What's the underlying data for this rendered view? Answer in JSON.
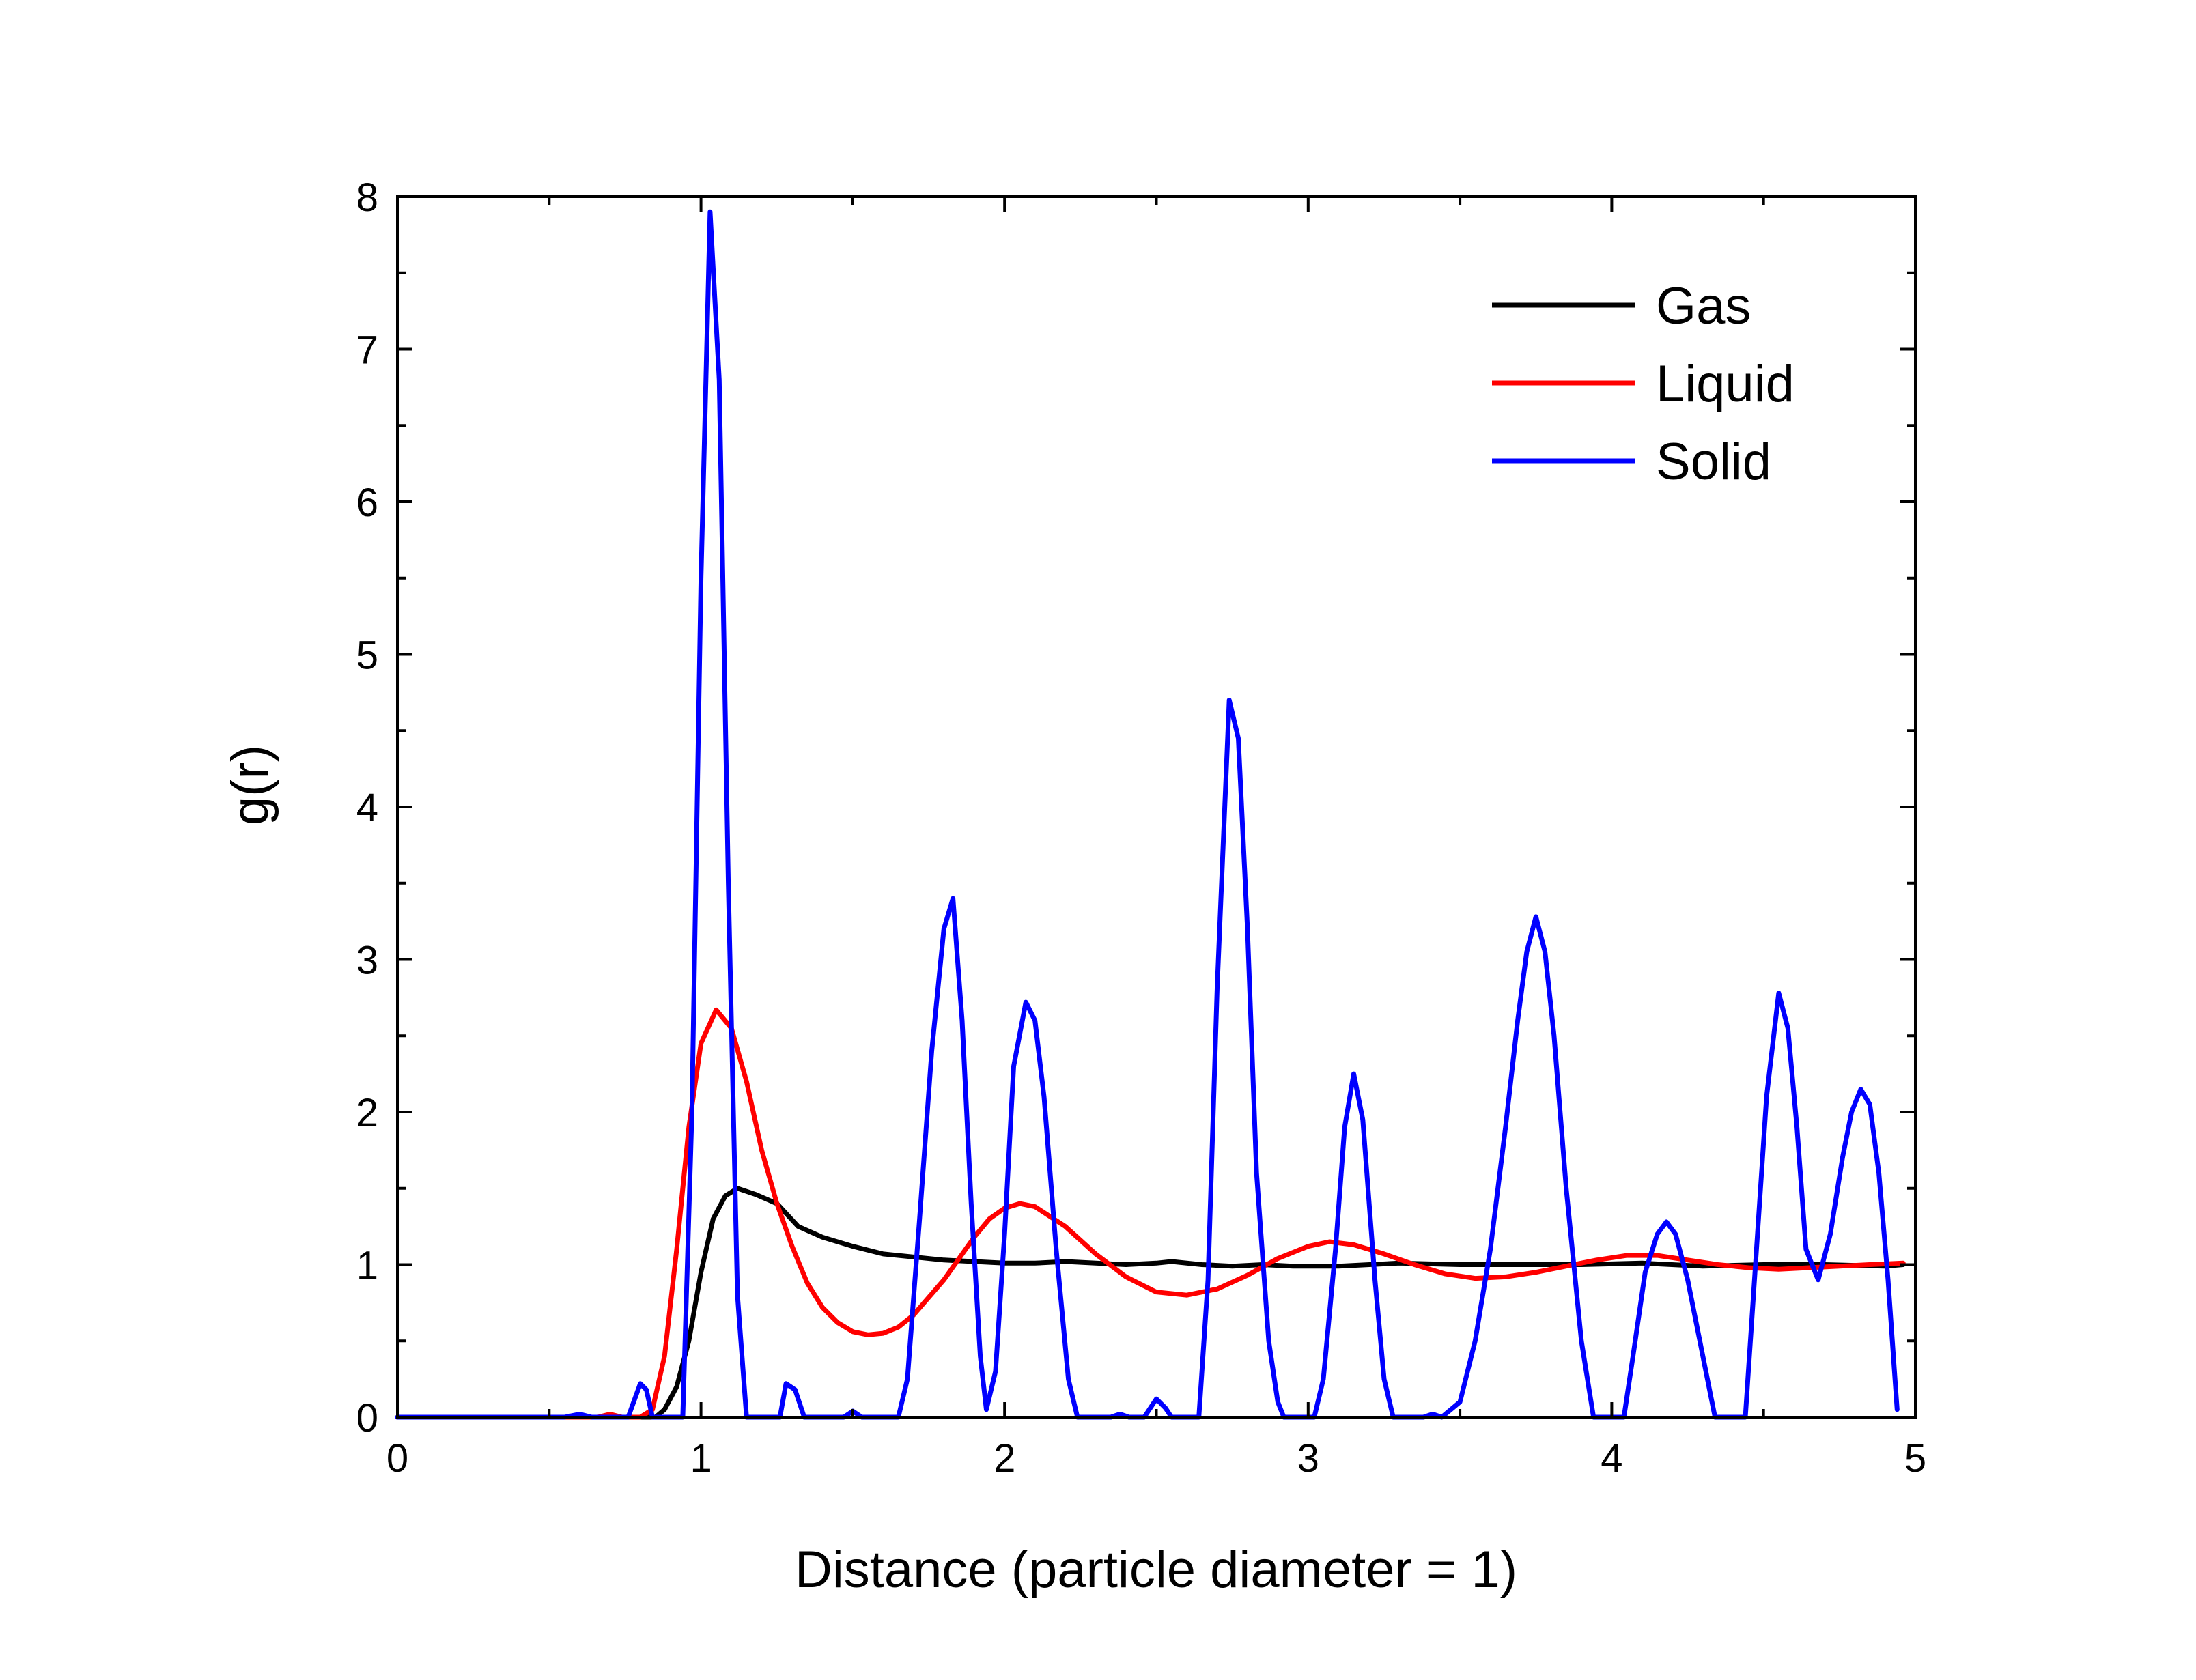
{
  "chart_data": {
    "type": "line",
    "xlabel": "Distance (particle diameter = 1)",
    "ylabel": "g(r)",
    "xlim": [
      0,
      5
    ],
    "ylim": [
      0,
      8
    ],
    "xticks": [
      "0",
      "1",
      "2",
      "3",
      "4",
      "5"
    ],
    "yticks": [
      "0",
      "1",
      "2",
      "3",
      "4",
      "5",
      "6",
      "7",
      "8"
    ],
    "grid": false,
    "legend": "top-right",
    "series": [
      {
        "name": "Gas",
        "color": "#000000",
        "points": [
          [
            0.0,
            0.0
          ],
          [
            0.8,
            0.0
          ],
          [
            0.85,
            0.0
          ],
          [
            0.88,
            0.05
          ],
          [
            0.92,
            0.2
          ],
          [
            0.96,
            0.5
          ],
          [
            1.0,
            0.95
          ],
          [
            1.04,
            1.3
          ],
          [
            1.08,
            1.45
          ],
          [
            1.12,
            1.5
          ],
          [
            1.18,
            1.46
          ],
          [
            1.25,
            1.4
          ],
          [
            1.32,
            1.25
          ],
          [
            1.4,
            1.18
          ],
          [
            1.5,
            1.12
          ],
          [
            1.6,
            1.07
          ],
          [
            1.7,
            1.05
          ],
          [
            1.8,
            1.03
          ],
          [
            1.9,
            1.02
          ],
          [
            2.0,
            1.01
          ],
          [
            2.1,
            1.01
          ],
          [
            2.2,
            1.02
          ],
          [
            2.3,
            1.01
          ],
          [
            2.4,
            1.0
          ],
          [
            2.5,
            1.01
          ],
          [
            2.55,
            1.02
          ],
          [
            2.65,
            1.0
          ],
          [
            2.75,
            0.99
          ],
          [
            2.85,
            1.0
          ],
          [
            2.95,
            0.99
          ],
          [
            3.1,
            0.99
          ],
          [
            3.3,
            1.01
          ],
          [
            3.5,
            1.0
          ],
          [
            3.7,
            1.0
          ],
          [
            3.9,
            1.0
          ],
          [
            4.1,
            1.01
          ],
          [
            4.3,
            0.99
          ],
          [
            4.5,
            1.0
          ],
          [
            4.7,
            1.0
          ],
          [
            4.9,
            0.99
          ],
          [
            4.96,
            1.0
          ]
        ]
      },
      {
        "name": "Liquid",
        "color": "#ff0000",
        "points": [
          [
            0.0,
            0.0
          ],
          [
            0.66,
            0.0
          ],
          [
            0.7,
            0.02
          ],
          [
            0.74,
            0.0
          ],
          [
            0.8,
            0.0
          ],
          [
            0.84,
            0.05
          ],
          [
            0.88,
            0.4
          ],
          [
            0.92,
            1.1
          ],
          [
            0.96,
            1.9
          ],
          [
            1.0,
            2.45
          ],
          [
            1.05,
            2.67
          ],
          [
            1.1,
            2.55
          ],
          [
            1.15,
            2.2
          ],
          [
            1.2,
            1.75
          ],
          [
            1.25,
            1.4
          ],
          [
            1.3,
            1.12
          ],
          [
            1.35,
            0.88
          ],
          [
            1.4,
            0.72
          ],
          [
            1.45,
            0.62
          ],
          [
            1.5,
            0.56
          ],
          [
            1.55,
            0.54
          ],
          [
            1.6,
            0.55
          ],
          [
            1.65,
            0.59
          ],
          [
            1.7,
            0.67
          ],
          [
            1.8,
            0.9
          ],
          [
            1.9,
            1.18
          ],
          [
            1.95,
            1.3
          ],
          [
            2.0,
            1.37
          ],
          [
            2.05,
            1.4
          ],
          [
            2.1,
            1.38
          ],
          [
            2.2,
            1.25
          ],
          [
            2.3,
            1.07
          ],
          [
            2.4,
            0.92
          ],
          [
            2.5,
            0.82
          ],
          [
            2.6,
            0.8
          ],
          [
            2.7,
            0.84
          ],
          [
            2.8,
            0.93
          ],
          [
            2.9,
            1.04
          ],
          [
            3.0,
            1.12
          ],
          [
            3.07,
            1.15
          ],
          [
            3.15,
            1.13
          ],
          [
            3.25,
            1.07
          ],
          [
            3.35,
            1.0
          ],
          [
            3.45,
            0.94
          ],
          [
            3.55,
            0.91
          ],
          [
            3.65,
            0.92
          ],
          [
            3.75,
            0.95
          ],
          [
            3.85,
            0.99
          ],
          [
            3.95,
            1.03
          ],
          [
            4.05,
            1.06
          ],
          [
            4.15,
            1.06
          ],
          [
            4.25,
            1.03
          ],
          [
            4.35,
            1.0
          ],
          [
            4.45,
            0.98
          ],
          [
            4.55,
            0.97
          ],
          [
            4.65,
            0.98
          ],
          [
            4.75,
            0.99
          ],
          [
            4.85,
            1.0
          ],
          [
            4.96,
            1.01
          ]
        ]
      },
      {
        "name": "Solid",
        "color": "#0000ff",
        "points": [
          [
            0.0,
            0.0
          ],
          [
            0.55,
            0.0
          ],
          [
            0.6,
            0.02
          ],
          [
            0.64,
            0.0
          ],
          [
            0.76,
            0.0
          ],
          [
            0.8,
            0.22
          ],
          [
            0.82,
            0.18
          ],
          [
            0.84,
            0.0
          ],
          [
            0.94,
            0.0
          ],
          [
            0.97,
            2.0
          ],
          [
            1.0,
            5.5
          ],
          [
            1.03,
            7.9
          ],
          [
            1.06,
            6.8
          ],
          [
            1.09,
            3.5
          ],
          [
            1.12,
            0.8
          ],
          [
            1.15,
            0.0
          ],
          [
            1.26,
            0.0
          ],
          [
            1.28,
            0.22
          ],
          [
            1.31,
            0.18
          ],
          [
            1.34,
            0.0
          ],
          [
            1.47,
            0.0
          ],
          [
            1.5,
            0.04
          ],
          [
            1.53,
            0.0
          ],
          [
            1.65,
            0.0
          ],
          [
            1.68,
            0.25
          ],
          [
            1.72,
            1.3
          ],
          [
            1.76,
            2.4
          ],
          [
            1.8,
            3.2
          ],
          [
            1.83,
            3.4
          ],
          [
            1.86,
            2.6
          ],
          [
            1.89,
            1.4
          ],
          [
            1.92,
            0.4
          ],
          [
            1.94,
            0.05
          ],
          [
            1.97,
            0.3
          ],
          [
            2.0,
            1.2
          ],
          [
            2.03,
            2.3
          ],
          [
            2.07,
            2.72
          ],
          [
            2.1,
            2.6
          ],
          [
            2.13,
            2.1
          ],
          [
            2.17,
            1.1
          ],
          [
            2.21,
            0.25
          ],
          [
            2.24,
            0.0
          ],
          [
            2.35,
            0.0
          ],
          [
            2.38,
            0.02
          ],
          [
            2.41,
            0.0
          ],
          [
            2.46,
            0.0
          ],
          [
            2.5,
            0.12
          ],
          [
            2.53,
            0.06
          ],
          [
            2.55,
            0.0
          ],
          [
            2.64,
            0.0
          ],
          [
            2.67,
            0.9
          ],
          [
            2.7,
            2.8
          ],
          [
            2.74,
            4.7
          ],
          [
            2.77,
            4.45
          ],
          [
            2.8,
            3.2
          ],
          [
            2.83,
            1.6
          ],
          [
            2.87,
            0.5
          ],
          [
            2.9,
            0.1
          ],
          [
            2.92,
            0.0
          ],
          [
            3.02,
            0.0
          ],
          [
            3.05,
            0.25
          ],
          [
            3.09,
            1.1
          ],
          [
            3.12,
            1.9
          ],
          [
            3.15,
            2.25
          ],
          [
            3.18,
            1.95
          ],
          [
            3.22,
            0.9
          ],
          [
            3.25,
            0.25
          ],
          [
            3.28,
            0.0
          ],
          [
            3.38,
            0.0
          ],
          [
            3.41,
            0.02
          ],
          [
            3.44,
            0.0
          ],
          [
            3.5,
            0.1
          ],
          [
            3.55,
            0.5
          ],
          [
            3.6,
            1.1
          ],
          [
            3.65,
            1.9
          ],
          [
            3.69,
            2.6
          ],
          [
            3.72,
            3.05
          ],
          [
            3.75,
            3.28
          ],
          [
            3.78,
            3.05
          ],
          [
            3.81,
            2.5
          ],
          [
            3.85,
            1.5
          ],
          [
            3.9,
            0.5
          ],
          [
            3.94,
            0.0
          ],
          [
            4.04,
            0.0
          ],
          [
            4.07,
            0.4
          ],
          [
            4.11,
            0.95
          ],
          [
            4.15,
            1.2
          ],
          [
            4.18,
            1.28
          ],
          [
            4.21,
            1.2
          ],
          [
            4.25,
            0.9
          ],
          [
            4.3,
            0.4
          ],
          [
            4.34,
            0.0
          ],
          [
            4.44,
            0.0
          ],
          [
            4.47,
            0.9
          ],
          [
            4.51,
            2.1
          ],
          [
            4.55,
            2.78
          ],
          [
            4.58,
            2.55
          ],
          [
            4.61,
            1.9
          ],
          [
            4.64,
            1.1
          ],
          [
            4.68,
            0.9
          ],
          [
            4.72,
            1.2
          ],
          [
            4.76,
            1.7
          ],
          [
            4.79,
            2.0
          ],
          [
            4.82,
            2.15
          ],
          [
            4.85,
            2.05
          ],
          [
            4.88,
            1.6
          ],
          [
            4.91,
            0.9
          ],
          [
            4.94,
            0.05
          ]
        ]
      }
    ]
  }
}
